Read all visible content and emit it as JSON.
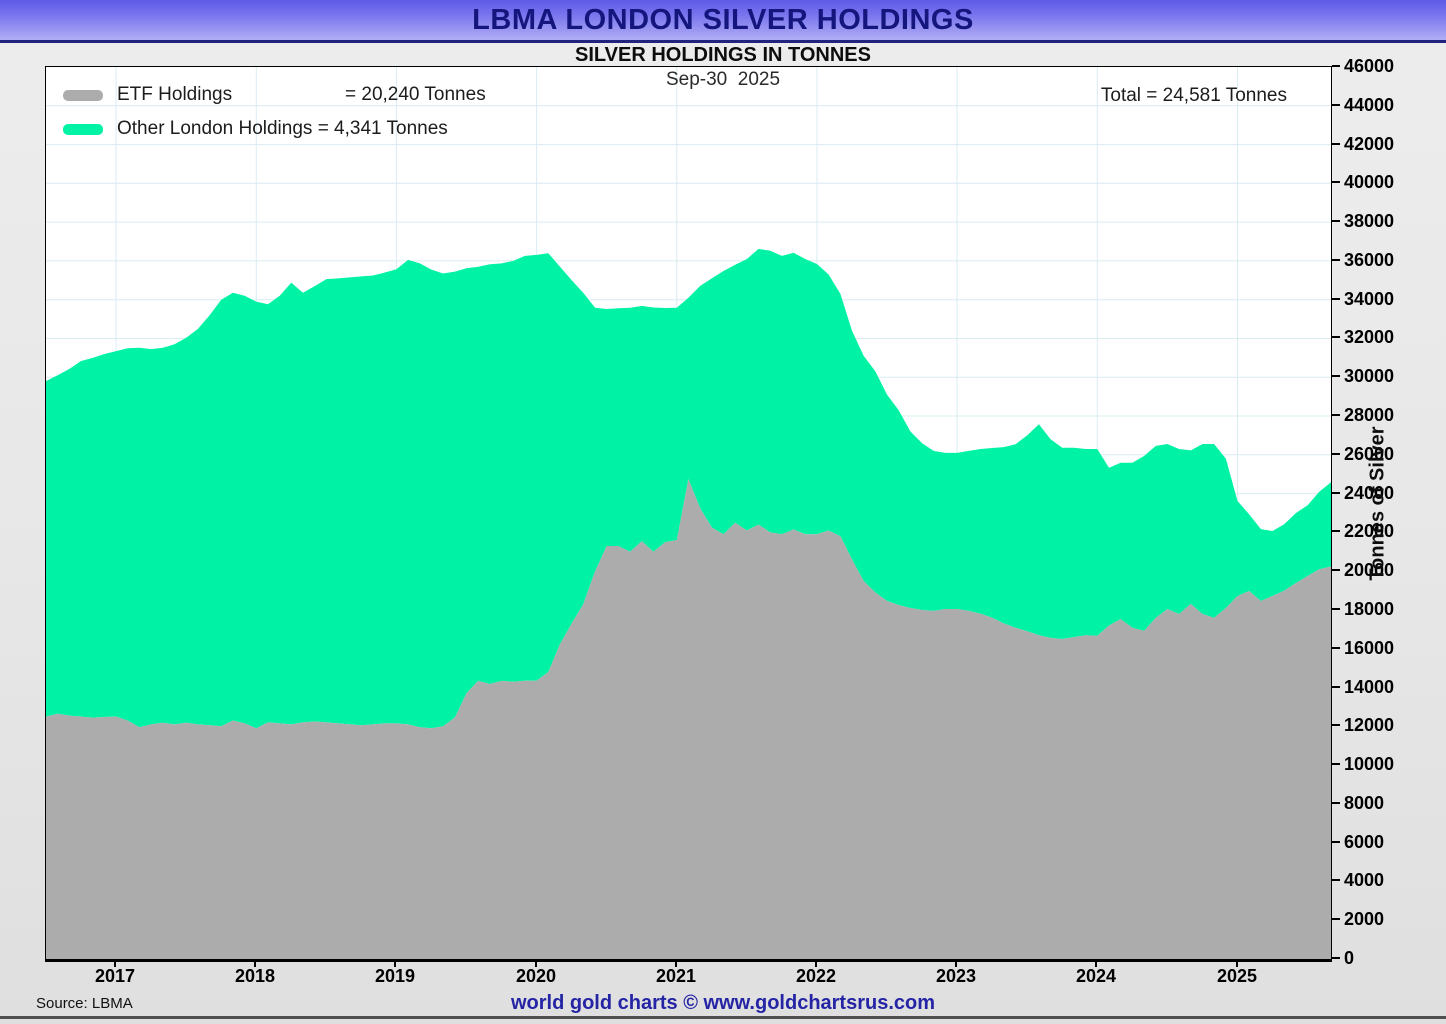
{
  "header": {
    "title": "LBMA LONDON SILVER HOLDINGS"
  },
  "subtitle": "SILVER HOLDINGS IN TONNES",
  "overlay": {
    "date_label": "Sep-30  2025",
    "total_label": "Total = 24,581 Tonnes"
  },
  "legend": {
    "items": [
      {
        "label": "ETF Holdings",
        "value_label": "= 20,240 Tonnes",
        "color": "#ACACAC"
      },
      {
        "label": "Other London Holdings ",
        "value_label": "= 4,341 Tonnes",
        "color": "#00F3A5"
      }
    ]
  },
  "y_axis": {
    "title": "Tonnes of Silver",
    "min": 0,
    "max": 46000,
    "step": 2000
  },
  "x_axis": {
    "years": [
      2017,
      2018,
      2019,
      2020,
      2021,
      2022,
      2023,
      2024,
      2025
    ]
  },
  "footer": {
    "source": "Source: LBMA",
    "credit": "world gold charts © www.goldchartsrus.com"
  },
  "colors": {
    "etf": "#ACACAC",
    "other": "#00F3A5",
    "grid": "#D8ECF2",
    "header_text": "#15157E",
    "credit": "#2424A5"
  },
  "chart_data": {
    "type": "area",
    "stacked": true,
    "title": "SILVER HOLDINGS IN TONNES",
    "as_of": "Sep-30 2025",
    "total_tonnes": 24581,
    "ylabel": "Tonnes of Silver",
    "ylim": [
      0,
      46000
    ],
    "ytick_step": 2000,
    "xticks": [
      2017,
      2018,
      2019,
      2020,
      2021,
      2022,
      2023,
      2024,
      2025
    ],
    "legend_position": "top-left",
    "grid": true,
    "x_unit": "decimal_year_monthly",
    "x": [
      2016.5,
      2016.583,
      2016.667,
      2016.75,
      2016.833,
      2016.917,
      2017.0,
      2017.083,
      2017.167,
      2017.25,
      2017.333,
      2017.417,
      2017.5,
      2017.583,
      2017.667,
      2017.75,
      2017.833,
      2017.917,
      2018.0,
      2018.083,
      2018.167,
      2018.25,
      2018.333,
      2018.417,
      2018.5,
      2018.583,
      2018.667,
      2018.75,
      2018.833,
      2018.917,
      2019.0,
      2019.083,
      2019.167,
      2019.25,
      2019.333,
      2019.417,
      2019.5,
      2019.583,
      2019.667,
      2019.75,
      2019.833,
      2019.917,
      2020.0,
      2020.083,
      2020.167,
      2020.25,
      2020.333,
      2020.417,
      2020.5,
      2020.583,
      2020.667,
      2020.75,
      2020.833,
      2020.917,
      2021.0,
      2021.083,
      2021.167,
      2021.25,
      2021.333,
      2021.417,
      2021.5,
      2021.583,
      2021.667,
      2021.75,
      2021.833,
      2021.917,
      2022.0,
      2022.083,
      2022.167,
      2022.25,
      2022.333,
      2022.417,
      2022.5,
      2022.583,
      2022.667,
      2022.75,
      2022.833,
      2022.917,
      2023.0,
      2023.083,
      2023.167,
      2023.25,
      2023.333,
      2023.417,
      2023.5,
      2023.583,
      2023.667,
      2023.75,
      2023.833,
      2023.917,
      2024.0,
      2024.083,
      2024.167,
      2024.25,
      2024.333,
      2024.417,
      2024.5,
      2024.583,
      2024.667,
      2024.75,
      2024.833,
      2024.917,
      2025.0,
      2025.083,
      2025.167,
      2025.25,
      2025.333,
      2025.417,
      2025.5,
      2025.583,
      2025.667
    ],
    "series": [
      {
        "name": "ETF Holdings",
        "color": "#ACACAC",
        "current_tonnes": 20240,
        "values": [
          12500,
          12650,
          12550,
          12500,
          12450,
          12480,
          12500,
          12300,
          11950,
          12100,
          12180,
          12100,
          12180,
          12100,
          12050,
          12000,
          12300,
          12150,
          11900,
          12200,
          12150,
          12100,
          12200,
          12250,
          12200,
          12150,
          12100,
          12050,
          12100,
          12150,
          12150,
          12100,
          11950,
          11900,
          12000,
          12450,
          13700,
          14350,
          14180,
          14340,
          14300,
          14350,
          14350,
          14800,
          16240,
          17300,
          18300,
          20000,
          21300,
          21300,
          21000,
          21550,
          21000,
          21500,
          21600,
          24750,
          23250,
          22250,
          21900,
          22500,
          22100,
          22400,
          22000,
          21900,
          22150,
          21900,
          21900,
          22100,
          21800,
          20600,
          19490,
          18900,
          18460,
          18250,
          18100,
          18000,
          17950,
          18050,
          18050,
          17950,
          17800,
          17600,
          17300,
          17080,
          16900,
          16700,
          16560,
          16500,
          16600,
          16700,
          16660,
          17200,
          17530,
          17080,
          16920,
          17590,
          18050,
          17790,
          18310,
          17790,
          17590,
          18100,
          18720,
          18980,
          18460,
          18720,
          19000,
          19390,
          19750,
          20100,
          20240
        ]
      },
      {
        "name": "Other London Holdings",
        "color": "#00F3A5",
        "current_tonnes": 4341,
        "values": [
          17300,
          17450,
          17880,
          18340,
          18550,
          18720,
          18850,
          19200,
          19570,
          19350,
          19340,
          19600,
          19860,
          20390,
          21150,
          22000,
          22060,
          22050,
          22000,
          21570,
          22050,
          22780,
          22160,
          22450,
          22860,
          22950,
          23050,
          23150,
          23150,
          23250,
          23420,
          23950,
          23920,
          23650,
          23350,
          23000,
          21920,
          21350,
          21650,
          21530,
          21700,
          21910,
          21960,
          21600,
          19460,
          17700,
          16050,
          13580,
          12220,
          12260,
          12580,
          12130,
          12600,
          12070,
          11980,
          9350,
          11460,
          12850,
          13580,
          13300,
          14000,
          14220,
          14520,
          14360,
          14270,
          14200,
          13940,
          13200,
          12500,
          11800,
          11610,
          11400,
          10640,
          10050,
          9100,
          8600,
          8250,
          8050,
          8050,
          8250,
          8500,
          8750,
          9100,
          9470,
          10100,
          10880,
          10240,
          9860,
          9760,
          9600,
          9640,
          8130,
          8060,
          8510,
          9020,
          8870,
          8510,
          8510,
          7920,
          8770,
          8970,
          7700,
          4900,
          3960,
          3710,
          3350,
          3420,
          3610,
          3650,
          4000,
          4341
        ]
      }
    ]
  }
}
